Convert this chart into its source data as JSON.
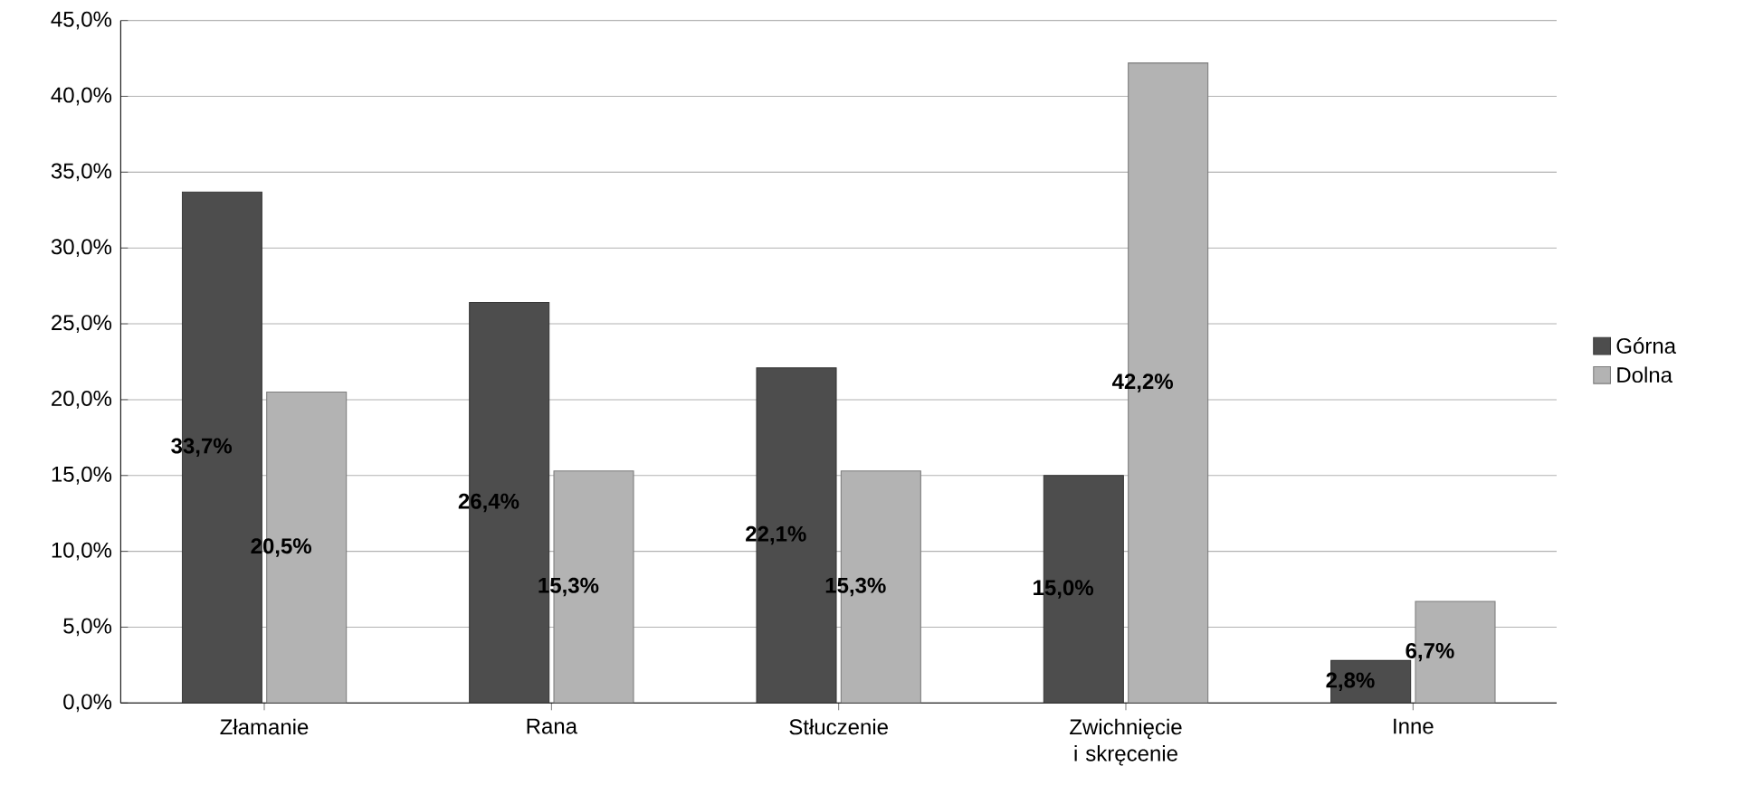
{
  "chart_data": {
    "type": "bar",
    "categories": [
      "Złamanie",
      "Rana",
      "Stłuczenie",
      "Zwichnięcie i skręcenie",
      "Inne"
    ],
    "series": [
      {
        "name": "Górna",
        "color": "#4d4d4d",
        "values": [
          33.7,
          26.4,
          22.1,
          15.0,
          2.8
        ],
        "value_labels": [
          "33,7%",
          "26,4%",
          "22,1%",
          "15,0%",
          "2,8%"
        ]
      },
      {
        "name": "Dolna",
        "color": "#b3b3b3",
        "values": [
          20.5,
          15.3,
          15.3,
          42.2,
          6.7
        ],
        "value_labels": [
          "20,5%",
          "15,3%",
          "15,3%",
          "42,2%",
          "6,7%"
        ]
      }
    ],
    "ylim": [
      0,
      45
    ],
    "yticks": [
      {
        "value": 0,
        "label": "0,0%"
      },
      {
        "value": 5,
        "label": "5,0%"
      },
      {
        "value": 10,
        "label": "10,0%"
      },
      {
        "value": 15,
        "label": "15,0%"
      },
      {
        "value": 20,
        "label": "20,0%"
      },
      {
        "value": 25,
        "label": "25,0%"
      },
      {
        "value": 30,
        "label": "30,0%"
      },
      {
        "value": 35,
        "label": "35,0%"
      },
      {
        "value": 40,
        "label": "40,0%"
      },
      {
        "value": 45,
        "label": "45,0%"
      }
    ],
    "grid": "y",
    "legend": "right"
  }
}
